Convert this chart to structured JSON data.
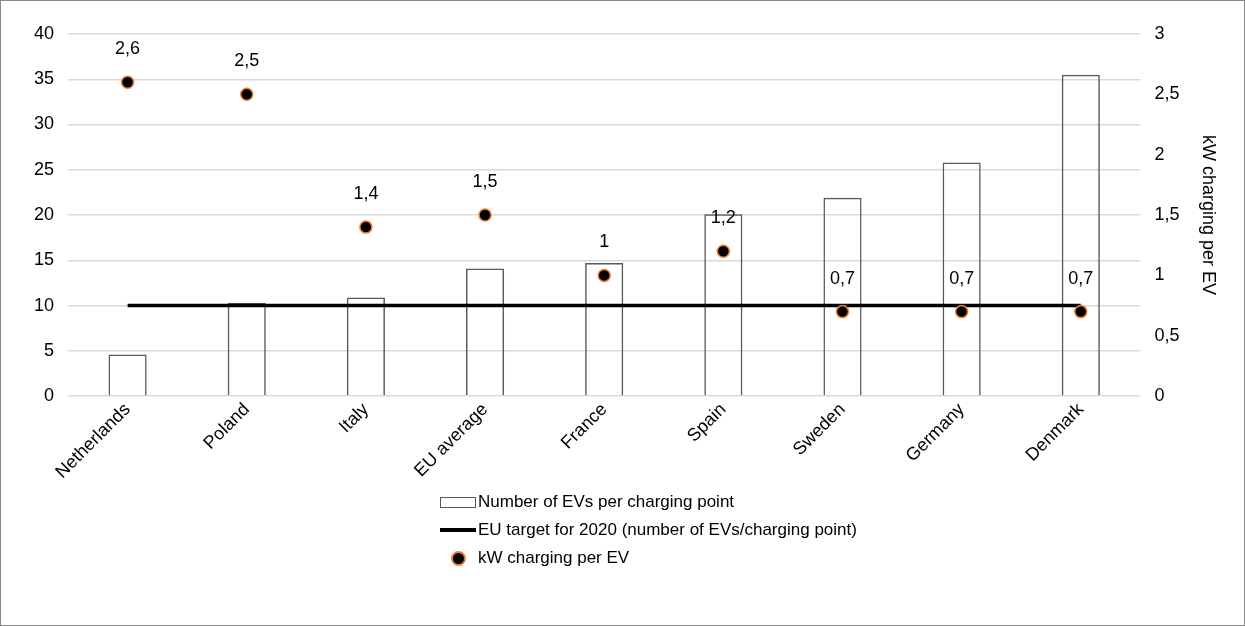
{
  "chart_data": {
    "type": "bar",
    "categories": [
      "Netherlands",
      "Poland",
      "Italy",
      "EU average",
      "France",
      "Spain",
      "Sweden",
      "Germany",
      "Denmark"
    ],
    "series": [
      {
        "name": "Number of EVs per charging point",
        "color": "#595959",
        "values": [
          4.6,
          10.3,
          10.9,
          14.1,
          14.7,
          20.1,
          21.9,
          25.8,
          35.5
        ]
      },
      {
        "name": "EU target for 2020 (number of EVs/charging point)",
        "type": "line",
        "color": "#000000",
        "values": [
          10,
          10,
          10,
          10,
          10,
          10,
          10,
          10,
          10
        ]
      },
      {
        "name": "kW charging per EV",
        "type": "scatter",
        "axis": "y2",
        "color": "#000000",
        "values": [
          2.6,
          2.5,
          1.4,
          1.5,
          1,
          1.2,
          0.7,
          0.7,
          0.7
        ],
        "value_labels": [
          "2,6",
          "2,5",
          "1,4",
          "1,5",
          "1",
          "1,2",
          "0,7",
          "0,7",
          "0,7"
        ]
      }
    ],
    "y2label": "kW charging per EV",
    "ylim": [
      0,
      40
    ],
    "yticks": [
      0,
      5,
      10,
      15,
      20,
      25,
      30,
      35,
      40
    ],
    "y2lim": [
      0,
      3
    ],
    "y2ticks": [
      0,
      {
        "value": 0.5,
        "label": "0,5"
      },
      1,
      {
        "value": 1.5,
        "label": "1,5"
      },
      2,
      {
        "value": 2.5,
        "label": "2,5"
      },
      3
    ],
    "grid": "y",
    "legend": "bottom"
  }
}
